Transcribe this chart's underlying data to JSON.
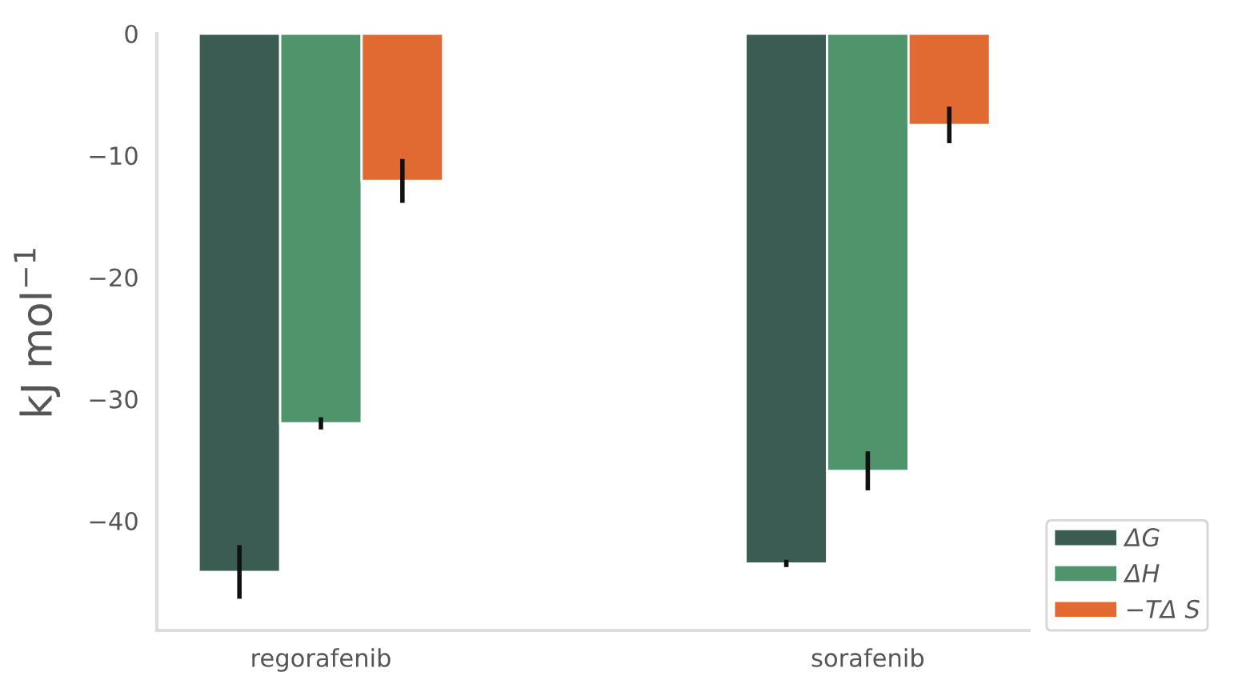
{
  "chart_data": {
    "type": "bar",
    "ylabel": "kJ mol$^{−1}$",
    "categories": [
      "regorafenib",
      "sorafenib"
    ],
    "series": [
      {
        "name": "ΔG",
        "color": "#3a5c52",
        "values": [
          -44.2,
          -43.5
        ],
        "errors": [
          2.2,
          0.3
        ]
      },
      {
        "name": "ΔH",
        "color": "#4f956c",
        "values": [
          -32.0,
          -35.9
        ],
        "errors": [
          0.5,
          1.6
        ]
      },
      {
        "name": "−TΔ S",
        "color": "#e06a32",
        "values": [
          -12.1,
          -7.5
        ],
        "errors": [
          1.8,
          1.5
        ]
      }
    ],
    "ylim": [
      -49,
      0
    ],
    "yticks": [
      0,
      -10,
      -20,
      -30,
      -40
    ],
    "grid": false,
    "legend": "bottom right"
  }
}
